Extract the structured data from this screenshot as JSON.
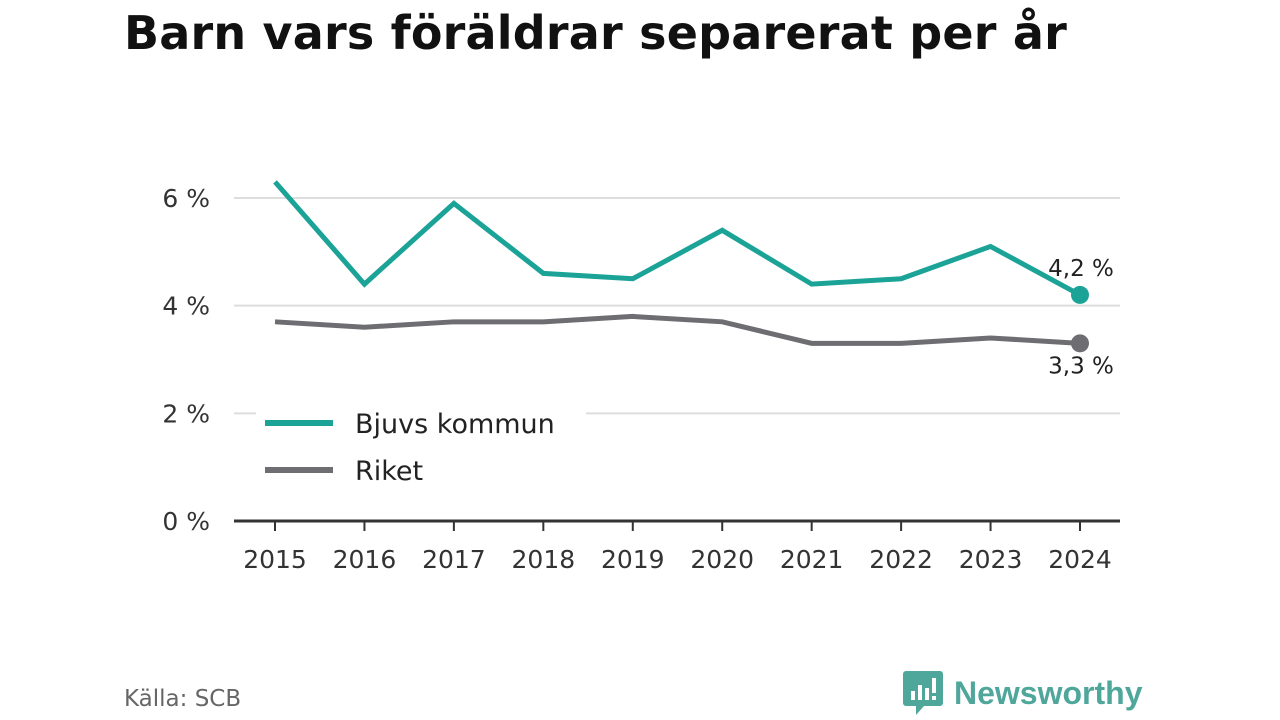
{
  "title": "Barn vars föräldrar separerat per år",
  "source": "Källa: SCB",
  "brand": {
    "name": "Newsworthy",
    "color": "#4fa69b"
  },
  "chart_data": {
    "type": "line",
    "title": "Barn vars föräldrar separerat per år",
    "x": [
      "2015",
      "2016",
      "2017",
      "2018",
      "2019",
      "2020",
      "2021",
      "2022",
      "2023",
      "2024"
    ],
    "series": [
      {
        "name": "Bjuvs kommun",
        "color": "#1aa396",
        "values": [
          6.3,
          4.4,
          5.9,
          4.6,
          4.5,
          5.4,
          4.4,
          4.5,
          5.1,
          4.2
        ],
        "end_label": "4,2 %"
      },
      {
        "name": "Riket",
        "color": "#6d6d72",
        "values": [
          3.7,
          3.6,
          3.7,
          3.7,
          3.8,
          3.7,
          3.3,
          3.3,
          3.4,
          3.3
        ],
        "end_label": "3,3 %"
      }
    ],
    "yticks": [
      0,
      2,
      4,
      6
    ],
    "ytick_labels": [
      "0 %",
      "2 %",
      "4 %",
      "6 %"
    ],
    "ylim": [
      0,
      7
    ],
    "grid": true,
    "legend": "bottom-left"
  }
}
